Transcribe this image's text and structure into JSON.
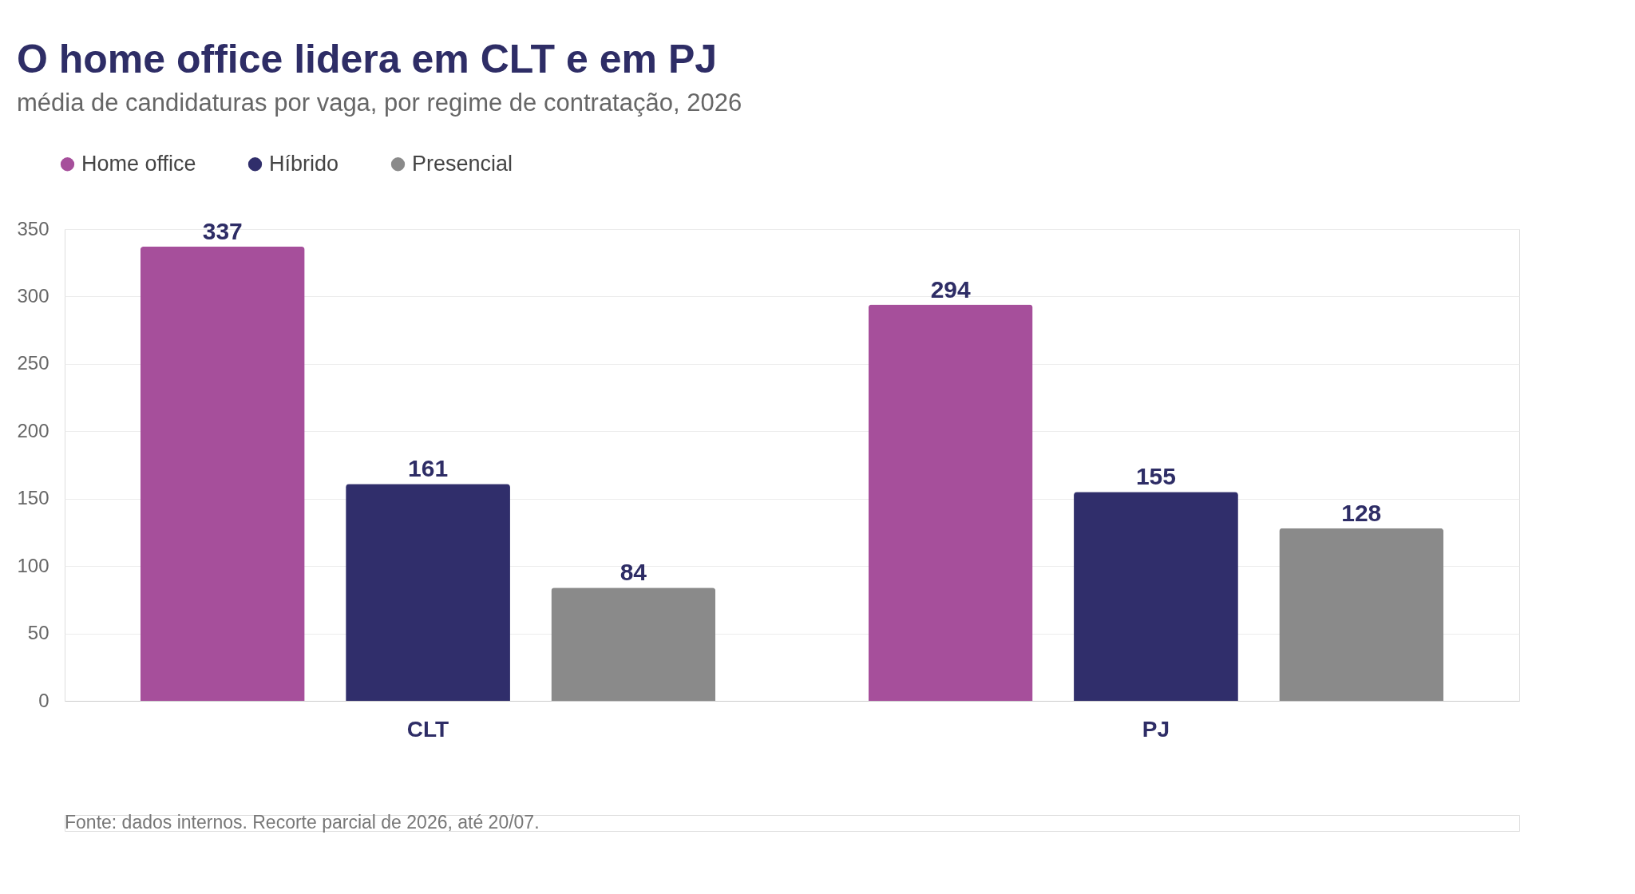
{
  "chart_data": {
    "type": "bar",
    "title": "O home office lidera em CLT e em PJ",
    "subtitle": "média de candidaturas por vaga, por regime de contratação, 2026",
    "categories": [
      "CLT",
      "PJ"
    ],
    "series": [
      {
        "name": "Home office",
        "color": "#a64f9b",
        "values": [
          337,
          294
        ]
      },
      {
        "name": "Híbrido",
        "color": "#302e6b",
        "values": [
          161,
          155
        ]
      },
      {
        "name": "Presencial",
        "color": "#8a8a8a",
        "values": [
          84,
          128
        ]
      }
    ],
    "ylim": [
      0,
      350
    ],
    "yticks": [
      0,
      50,
      100,
      150,
      200,
      250,
      300,
      350
    ],
    "grid": "y",
    "legend": "top left",
    "data_labels": true,
    "annotations": [
      "Fonte: dados internos. Recorte parcial de 2026, até 20/07."
    ]
  }
}
